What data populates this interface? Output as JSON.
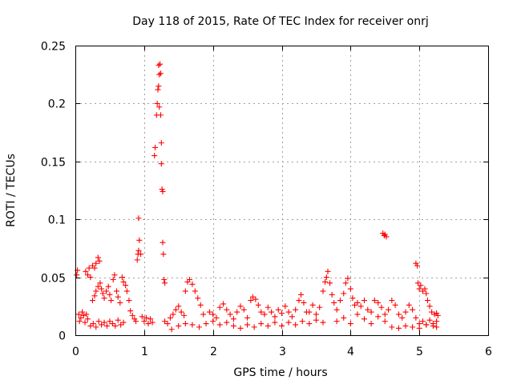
{
  "chart_data": {
    "type": "scatter",
    "title": "Day 118 of 2015, Rate Of TEC Index for receiver onrj",
    "xlabel": "GPS time / hours",
    "ylabel": "ROTI / TECUs",
    "xlim": [
      0,
      6
    ],
    "ylim": [
      0,
      0.25
    ],
    "x_ticks": [
      0,
      1,
      2,
      3,
      4,
      5,
      6
    ],
    "x_tick_labels": [
      "0",
      "1",
      "2",
      "3",
      "4",
      "5",
      "6"
    ],
    "y_ticks": [
      0,
      0.05,
      0.1,
      0.15,
      0.2,
      0.25
    ],
    "y_tick_labels": [
      "0",
      "0.05",
      "0.1",
      "0.15",
      "0.2",
      "0.25"
    ],
    "grid": true,
    "marker": "plus",
    "color": "#ff0000",
    "series": [
      {
        "name": "ROTI",
        "points": [
          [
            0.02,
            0.052
          ],
          [
            0.03,
            0.056
          ],
          [
            0.05,
            0.018
          ],
          [
            0.06,
            0.012
          ],
          [
            0.08,
            0.015
          ],
          [
            0.1,
            0.02
          ],
          [
            0.12,
            0.017
          ],
          [
            0.14,
            0.011
          ],
          [
            0.16,
            0.018
          ],
          [
            0.18,
            0.014
          ],
          [
            0.15,
            0.055
          ],
          [
            0.18,
            0.052
          ],
          [
            0.2,
            0.058
          ],
          [
            0.22,
            0.05
          ],
          [
            0.25,
            0.06
          ],
          [
            0.28,
            0.058
          ],
          [
            0.3,
            0.062
          ],
          [
            0.33,
            0.067
          ],
          [
            0.35,
            0.064
          ],
          [
            0.25,
            0.03
          ],
          [
            0.28,
            0.034
          ],
          [
            0.3,
            0.038
          ],
          [
            0.33,
            0.042
          ],
          [
            0.36,
            0.045
          ],
          [
            0.38,
            0.04
          ],
          [
            0.4,
            0.036
          ],
          [
            0.42,
            0.032
          ],
          [
            0.45,
            0.038
          ],
          [
            0.48,
            0.042
          ],
          [
            0.5,
            0.035
          ],
          [
            0.52,
            0.03
          ],
          [
            0.55,
            0.048
          ],
          [
            0.57,
            0.052
          ],
          [
            0.6,
            0.038
          ],
          [
            0.62,
            0.033
          ],
          [
            0.65,
            0.028
          ],
          [
            0.22,
            0.008
          ],
          [
            0.26,
            0.01
          ],
          [
            0.3,
            0.007
          ],
          [
            0.34,
            0.012
          ],
          [
            0.38,
            0.009
          ],
          [
            0.42,
            0.011
          ],
          [
            0.46,
            0.008
          ],
          [
            0.5,
            0.012
          ],
          [
            0.54,
            0.01
          ],
          [
            0.58,
            0.008
          ],
          [
            0.62,
            0.013
          ],
          [
            0.66,
            0.009
          ],
          [
            0.7,
            0.011
          ],
          [
            0.68,
            0.05
          ],
          [
            0.7,
            0.046
          ],
          [
            0.73,
            0.043
          ],
          [
            0.75,
            0.038
          ],
          [
            0.78,
            0.03
          ],
          [
            0.8,
            0.021
          ],
          [
            0.83,
            0.017
          ],
          [
            0.86,
            0.014
          ],
          [
            0.88,
            0.012
          ],
          [
            0.9,
            0.065
          ],
          [
            0.91,
            0.07
          ],
          [
            0.92,
            0.073
          ],
          [
            0.93,
            0.082
          ],
          [
            0.92,
            0.101
          ],
          [
            0.95,
            0.07
          ],
          [
            0.97,
            0.016
          ],
          [
            1.0,
            0.012
          ],
          [
            1.03,
            0.015
          ],
          [
            1.06,
            0.01
          ],
          [
            1.09,
            0.014
          ],
          [
            1.12,
            0.011
          ],
          [
            1.15,
            0.155
          ],
          [
            1.16,
            0.162
          ],
          [
            1.18,
            0.19
          ],
          [
            1.19,
            0.2
          ],
          [
            1.2,
            0.212
          ],
          [
            1.21,
            0.215
          ],
          [
            1.22,
            0.225
          ],
          [
            1.21,
            0.233
          ],
          [
            1.23,
            0.234
          ],
          [
            1.24,
            0.226
          ],
          [
            1.22,
            0.197
          ],
          [
            1.24,
            0.19
          ],
          [
            1.25,
            0.166
          ],
          [
            1.25,
            0.148
          ],
          [
            1.26,
            0.126
          ],
          [
            1.27,
            0.124
          ],
          [
            1.27,
            0.08
          ],
          [
            1.28,
            0.07
          ],
          [
            1.29,
            0.048
          ],
          [
            1.3,
            0.045
          ],
          [
            1.3,
            0.012
          ],
          [
            1.34,
            0.01
          ],
          [
            1.38,
            0.015
          ],
          [
            1.42,
            0.018
          ],
          [
            1.46,
            0.022
          ],
          [
            1.5,
            0.025
          ],
          [
            1.54,
            0.02
          ],
          [
            1.58,
            0.017
          ],
          [
            1.6,
            0.038
          ],
          [
            1.63,
            0.046
          ],
          [
            1.66,
            0.048
          ],
          [
            1.7,
            0.044
          ],
          [
            1.74,
            0.038
          ],
          [
            1.78,
            0.032
          ],
          [
            1.82,
            0.026
          ],
          [
            1.86,
            0.018
          ],
          [
            1.4,
            0.005
          ],
          [
            1.5,
            0.008
          ],
          [
            1.6,
            0.01
          ],
          [
            1.7,
            0.009
          ],
          [
            1.8,
            0.007
          ],
          [
            1.9,
            0.01
          ],
          [
            2.0,
            0.012
          ],
          [
            2.1,
            0.009
          ],
          [
            2.2,
            0.011
          ],
          [
            1.95,
            0.02
          ],
          [
            2.0,
            0.018
          ],
          [
            2.05,
            0.015
          ],
          [
            2.1,
            0.024
          ],
          [
            2.15,
            0.027
          ],
          [
            2.2,
            0.022
          ],
          [
            2.25,
            0.018
          ],
          [
            2.3,
            0.014
          ],
          [
            2.35,
            0.02
          ],
          [
            2.4,
            0.025
          ],
          [
            2.45,
            0.022
          ],
          [
            2.5,
            0.015
          ],
          [
            2.55,
            0.03
          ],
          [
            2.58,
            0.033
          ],
          [
            2.62,
            0.031
          ],
          [
            2.66,
            0.026
          ],
          [
            2.7,
            0.02
          ],
          [
            2.3,
            0.008
          ],
          [
            2.4,
            0.006
          ],
          [
            2.5,
            0.009
          ],
          [
            2.6,
            0.007
          ],
          [
            2.7,
            0.01
          ],
          [
            2.8,
            0.008
          ],
          [
            2.9,
            0.011
          ],
          [
            2.75,
            0.018
          ],
          [
            2.8,
            0.024
          ],
          [
            2.85,
            0.02
          ],
          [
            2.9,
            0.016
          ],
          [
            2.95,
            0.022
          ],
          [
            3.0,
            0.019
          ],
          [
            3.05,
            0.025
          ],
          [
            3.1,
            0.02
          ],
          [
            3.15,
            0.016
          ],
          [
            3.2,
            0.022
          ],
          [
            3.25,
            0.03
          ],
          [
            3.28,
            0.035
          ],
          [
            3.32,
            0.028
          ],
          [
            3.36,
            0.02
          ],
          [
            3.0,
            0.008
          ],
          [
            3.1,
            0.011
          ],
          [
            3.2,
            0.009
          ],
          [
            3.3,
            0.012
          ],
          [
            3.4,
            0.01
          ],
          [
            3.5,
            0.013
          ],
          [
            3.6,
            0.011
          ],
          [
            3.4,
            0.02
          ],
          [
            3.45,
            0.026
          ],
          [
            3.5,
            0.018
          ],
          [
            3.55,
            0.024
          ],
          [
            3.6,
            0.038
          ],
          [
            3.63,
            0.046
          ],
          [
            3.65,
            0.05
          ],
          [
            3.67,
            0.055
          ],
          [
            3.7,
            0.045
          ],
          [
            3.73,
            0.035
          ],
          [
            3.76,
            0.028
          ],
          [
            3.8,
            0.022
          ],
          [
            3.85,
            0.03
          ],
          [
            3.9,
            0.036
          ],
          [
            3.93,
            0.045
          ],
          [
            3.96,
            0.049
          ],
          [
            4.0,
            0.04
          ],
          [
            4.03,
            0.032
          ],
          [
            4.06,
            0.026
          ],
          [
            3.8,
            0.012
          ],
          [
            3.9,
            0.015
          ],
          [
            4.0,
            0.01
          ],
          [
            4.1,
            0.018
          ],
          [
            4.2,
            0.014
          ],
          [
            4.3,
            0.01
          ],
          [
            4.4,
            0.016
          ],
          [
            4.5,
            0.012
          ],
          [
            4.1,
            0.028
          ],
          [
            4.15,
            0.025
          ],
          [
            4.2,
            0.03
          ],
          [
            4.25,
            0.022
          ],
          [
            4.3,
            0.02
          ],
          [
            4.35,
            0.03
          ],
          [
            4.4,
            0.028
          ],
          [
            4.45,
            0.024
          ],
          [
            4.5,
            0.018
          ],
          [
            4.55,
            0.022
          ],
          [
            4.6,
            0.03
          ],
          [
            4.65,
            0.026
          ],
          [
            4.7,
            0.018
          ],
          [
            4.75,
            0.015
          ],
          [
            4.8,
            0.02
          ],
          [
            4.85,
            0.026
          ],
          [
            4.9,
            0.022
          ],
          [
            4.47,
            0.088
          ],
          [
            4.49,
            0.086
          ],
          [
            4.5,
            0.087
          ],
          [
            4.52,
            0.085
          ],
          [
            4.6,
            0.007
          ],
          [
            4.7,
            0.006
          ],
          [
            4.8,
            0.008
          ],
          [
            4.9,
            0.007
          ],
          [
            5.0,
            0.006
          ],
          [
            5.1,
            0.009
          ],
          [
            5.2,
            0.008
          ],
          [
            5.25,
            0.007
          ],
          [
            4.95,
            0.062
          ],
          [
            4.97,
            0.06
          ],
          [
            4.98,
            0.045
          ],
          [
            5.0,
            0.04
          ],
          [
            5.02,
            0.043
          ],
          [
            5.05,
            0.038
          ],
          [
            5.08,
            0.04
          ],
          [
            5.1,
            0.036
          ],
          [
            5.12,
            0.03
          ],
          [
            5.15,
            0.025
          ],
          [
            5.18,
            0.02
          ],
          [
            5.22,
            0.018
          ],
          [
            5.25,
            0.019
          ],
          [
            5.27,
            0.017
          ],
          [
            4.95,
            0.015
          ],
          [
            5.0,
            0.01
          ],
          [
            5.05,
            0.012
          ],
          [
            5.1,
            0.009
          ],
          [
            5.15,
            0.013
          ],
          [
            5.2,
            0.01
          ],
          [
            5.25,
            0.012
          ]
        ]
      }
    ]
  }
}
